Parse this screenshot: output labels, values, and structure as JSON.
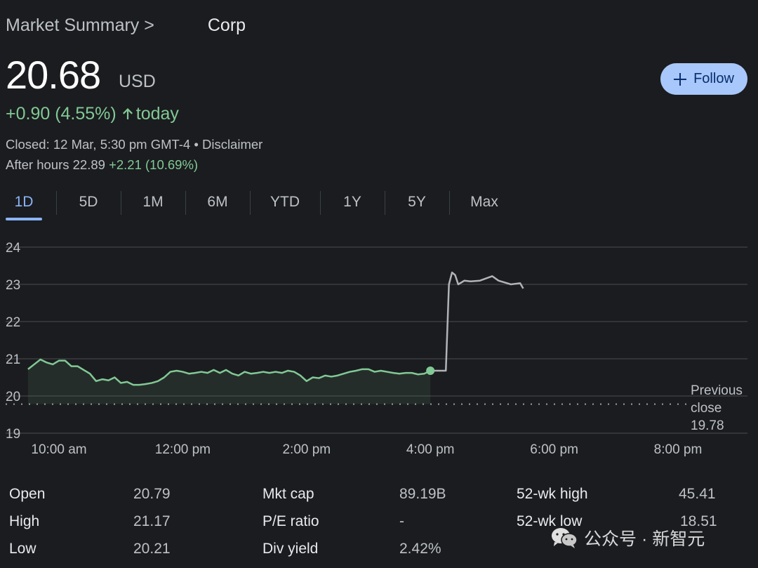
{
  "breadcrumb": {
    "root": "Market Summary >",
    "company": "Corp"
  },
  "quote": {
    "price": "20.68",
    "currency": "USD",
    "change": "+0.90 (4.55%)",
    "change_suffix": "today",
    "closed_text": "Closed: 12 Mar, 5:30 pm GMT-4 • Disclaimer",
    "after_hours_label": "After hours 22.89",
    "after_hours_change": "+2.21 (10.69%)"
  },
  "follow_label": "Follow",
  "tabs": [
    "1D",
    "5D",
    "1M",
    "6M",
    "YTD",
    "1Y",
    "5Y",
    "Max"
  ],
  "active_tab": "1D",
  "colors": {
    "positive": "#81c995",
    "after_hours_line": "#b0b3b8",
    "accent": "#8ab4f8",
    "follow_bg": "#a8c7fa"
  },
  "chart_data": {
    "type": "line",
    "y_ticks": [
      24,
      23,
      22,
      21,
      20,
      19
    ],
    "ylim": [
      19,
      24
    ],
    "x_ticks": [
      {
        "label": "10:00 am",
        "t": 10.0
      },
      {
        "label": "12:00 pm",
        "t": 12.0
      },
      {
        "label": "2:00 pm",
        "t": 14.0
      },
      {
        "label": "4:00 pm",
        "t": 16.0
      },
      {
        "label": "6:00 pm",
        "t": 18.0
      },
      {
        "label": "8:00 pm",
        "t": 20.0
      }
    ],
    "xlim": [
      9.5,
      20.5
    ],
    "previous_close": {
      "label_1": "Previous",
      "label_2": "close",
      "value": "19.78",
      "y": 19.78
    },
    "series": [
      {
        "session": "regular",
        "x": [
          9.5,
          9.6,
          9.7,
          9.8,
          9.9,
          10.0,
          10.1,
          10.2,
          10.3,
          10.4,
          10.5,
          10.6,
          10.7,
          10.8,
          10.9,
          11.0,
          11.1,
          11.2,
          11.3,
          11.4,
          11.5,
          11.6,
          11.7,
          11.8,
          11.9,
          12.0,
          12.1,
          12.2,
          12.3,
          12.4,
          12.5,
          12.6,
          12.7,
          12.8,
          12.9,
          13.0,
          13.1,
          13.2,
          13.3,
          13.4,
          13.5,
          13.6,
          13.7,
          13.8,
          13.9,
          14.0,
          14.1,
          14.2,
          14.3,
          14.4,
          14.5,
          14.6,
          14.7,
          14.8,
          14.9,
          15.0,
          15.1,
          15.2,
          15.3,
          15.4,
          15.5,
          15.6,
          15.7,
          15.8,
          15.9,
          16.0
        ],
        "values": [
          20.72,
          20.85,
          20.98,
          20.9,
          20.85,
          20.95,
          20.95,
          20.8,
          20.8,
          20.7,
          20.6,
          20.4,
          20.45,
          20.42,
          20.5,
          20.35,
          20.38,
          20.3,
          20.3,
          20.32,
          20.35,
          20.4,
          20.5,
          20.65,
          20.68,
          20.65,
          20.6,
          20.62,
          20.65,
          20.62,
          20.7,
          20.62,
          20.7,
          20.6,
          20.55,
          20.65,
          20.6,
          20.62,
          20.65,
          20.62,
          20.65,
          20.62,
          20.68,
          20.65,
          20.55,
          20.4,
          20.5,
          20.48,
          20.55,
          20.52,
          20.55,
          20.6,
          20.65,
          20.68,
          20.72,
          20.72,
          20.65,
          20.68,
          20.65,
          20.62,
          20.6,
          20.62,
          20.62,
          20.58,
          20.6,
          20.68
        ]
      },
      {
        "session": "after_hours",
        "x": [
          16.0,
          16.25,
          16.3,
          16.35,
          16.4,
          16.45,
          16.55,
          16.65,
          16.8,
          17.0,
          17.1,
          17.2,
          17.3,
          17.45,
          17.5
        ],
        "values": [
          20.68,
          20.68,
          23.0,
          23.32,
          23.25,
          23.0,
          23.1,
          23.08,
          23.1,
          23.22,
          23.1,
          23.05,
          23.0,
          23.03,
          22.89
        ]
      }
    ]
  },
  "stats": {
    "col1": [
      {
        "label": "Open",
        "value": "20.79"
      },
      {
        "label": "High",
        "value": "21.17"
      },
      {
        "label": "Low",
        "value": "20.21"
      }
    ],
    "col2": [
      {
        "label": "Mkt cap",
        "value": "89.19B"
      },
      {
        "label": "P/E ratio",
        "value": "-"
      },
      {
        "label": "Div yield",
        "value": "2.42%"
      }
    ],
    "col3": [
      {
        "label": "52-wk high",
        "value": "45.41"
      },
      {
        "label": "52-wk low",
        "value": "18.51"
      }
    ]
  },
  "watermark": "公众号 · 新智元"
}
